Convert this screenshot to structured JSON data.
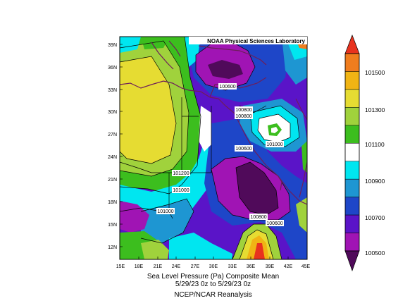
{
  "map": {
    "badge": "NOAA Physical Sciences Laboratory",
    "lat_ticks": [
      "39N",
      "36N",
      "33N",
      "30N",
      "27N",
      "24N",
      "21N",
      "18N",
      "15N",
      "12N"
    ],
    "lon_ticks": [
      "15E",
      "18E",
      "21E",
      "24E",
      "27E",
      "30E",
      "33E",
      "36E",
      "39E",
      "42E",
      "45E"
    ],
    "contour_labels": [
      "100600",
      "100800",
      "100800",
      "100800",
      "101000",
      "100600",
      "101200",
      "101000",
      "101000",
      "100800",
      "100600"
    ]
  },
  "caption": {
    "line1": "Sea Level Pressure (Pa)    Composite Mean",
    "line2": "5/29/23 0z  to 5/29/23 0z",
    "line3": "NCEP/NCAR Reanalysis"
  },
  "colorbar": {
    "labels": [
      "101500",
      "101300",
      "101100",
      "100900",
      "100700",
      "100500"
    ],
    "colors": [
      "#e8321e",
      "#f07d1e",
      "#f0b414",
      "#e6dc32",
      "#a0d23c",
      "#3cbe1e",
      "#ffffff",
      "#00e6f0",
      "#1e96d2",
      "#1e46c8",
      "#5a14c8",
      "#a014b4",
      "#500a5a"
    ]
  }
}
